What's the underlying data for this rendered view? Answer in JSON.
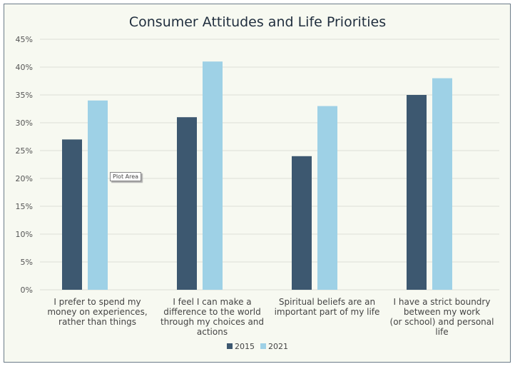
{
  "chart_data": {
    "type": "bar",
    "title": "Consumer Attitudes and Life Priorities",
    "categories": [
      [
        "I prefer to spend my",
        "money on experiences,",
        "rather than things"
      ],
      [
        "I feel I can make a",
        "difference to the world",
        "through my choices and",
        "actions"
      ],
      [
        "Spiritual beliefs are an",
        "important part of my life"
      ],
      [
        "I have a strict boundry",
        "between my work",
        "(or school) and personal",
        "life"
      ]
    ],
    "series": [
      {
        "name": "2015",
        "color": "#3d5870",
        "values": [
          27,
          31,
          24,
          35
        ]
      },
      {
        "name": "2021",
        "color": "#9ed1e6",
        "values": [
          34,
          41,
          33,
          38
        ]
      }
    ],
    "ylim": [
      0,
      45
    ],
    "yticks": [
      "0%",
      "5%",
      "10%",
      "15%",
      "20%",
      "25%",
      "30%",
      "35%",
      "40%",
      "45%"
    ],
    "grid": true,
    "legend": "bottom"
  },
  "tooltip": "Plot Area"
}
